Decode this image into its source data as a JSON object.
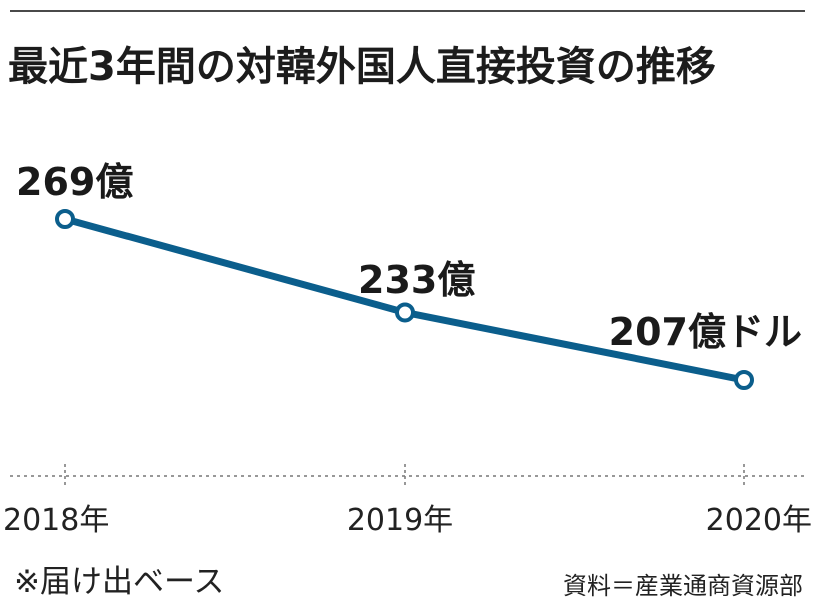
{
  "title": "最近3年間の対韓外国人直接投資の推移",
  "note": "※届け出ベース",
  "source": "資料＝産業通商資源部",
  "colors": {
    "line": "#0b5e8c",
    "text": "#1a1a1a",
    "axis": "#777777"
  },
  "chart_data": {
    "type": "line",
    "categories": [
      "2018年",
      "2019年",
      "2020年"
    ],
    "values": [
      269,
      233,
      207
    ],
    "data_labels": [
      "269億",
      "233億",
      "207億ドル"
    ],
    "title": "最近3年間の対韓外国人直接投資の推移",
    "xlabel": "",
    "ylabel": "",
    "grid": false,
    "legend": "none"
  }
}
